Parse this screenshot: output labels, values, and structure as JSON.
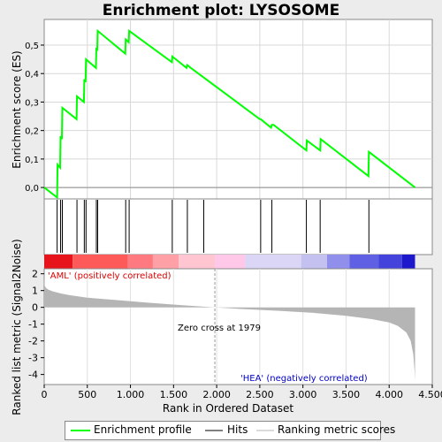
{
  "title": "Enrichment plot: LYSOSOME",
  "chart_data": {
    "type": "line",
    "top_panel": {
      "ylabel": "Enrichment score (ES)",
      "ylim": [
        -0.04,
        0.59
      ],
      "yticks": [
        0.0,
        0.1,
        0.2,
        0.3,
        0.4,
        0.5
      ],
      "ytick_labels": [
        "0,0",
        "0,1",
        "0,2",
        "0,3",
        "0,4",
        "0,5"
      ],
      "series": [
        {
          "name": "Enrichment profile",
          "color": "#00ff00",
          "x": [
            0,
            150,
            155,
            185,
            190,
            205,
            210,
            375,
            380,
            460,
            465,
            480,
            485,
            600,
            605,
            615,
            620,
            940,
            945,
            980,
            985,
            1480,
            1485,
            1650,
            1660,
            1700,
            2500,
            2510,
            2630,
            2640,
            2660,
            3040,
            3045,
            3200,
            3205,
            3760,
            3765,
            4300
          ],
          "y": [
            0.0,
            -0.035,
            0.08,
            0.07,
            0.18,
            0.17,
            0.28,
            0.24,
            0.32,
            0.3,
            0.38,
            0.37,
            0.45,
            0.42,
            0.49,
            0.48,
            0.55,
            0.47,
            0.52,
            0.51,
            0.55,
            0.44,
            0.46,
            0.42,
            0.43,
            0.42,
            0.24,
            0.24,
            0.21,
            0.22,
            0.22,
            0.13,
            0.165,
            0.13,
            0.17,
            0.04,
            0.125,
            0.0
          ]
        }
      ]
    },
    "hits": [
      150,
      190,
      210,
      380,
      465,
      485,
      605,
      620,
      945,
      985,
      1485,
      1660,
      1850,
      2510,
      2640,
      3040,
      3200,
      3765
    ],
    "bottom_panel": {
      "ylabel": "Ranked list metric (Signal2Noise)",
      "ylim": [
        -4.6,
        2.3
      ],
      "yticks": [
        -4,
        -3,
        -2,
        -1,
        0,
        1,
        2
      ],
      "ytick_labels": [
        "-4",
        "-3",
        "-2",
        "-1",
        "0",
        "1",
        "2"
      ],
      "metric_x": [
        0,
        5,
        20,
        50,
        100,
        200,
        300,
        500,
        800,
        1200,
        1600,
        1979,
        2300,
        2700,
        3100,
        3500,
        3800,
        4000,
        4100,
        4200,
        4250,
        4280,
        4295,
        4300
      ],
      "metric_y": [
        2.05,
        1.3,
        1.15,
        1.05,
        0.95,
        0.82,
        0.72,
        0.58,
        0.45,
        0.28,
        0.13,
        0.0,
        -0.1,
        -0.2,
        -0.32,
        -0.5,
        -0.7,
        -0.9,
        -1.1,
        -1.5,
        -2.0,
        -2.8,
        -3.8,
        -4.35
      ],
      "fill_color": "#b5b5b5"
    },
    "x_axis": {
      "label": "Rank in Ordered Dataset",
      "xlim": [
        0,
        4500
      ],
      "ticks": [
        0,
        500,
        1000,
        1500,
        2000,
        2500,
        3000,
        3500,
        4000,
        4500
      ],
      "tick_labels": [
        "0",
        "500",
        "1.000",
        "1.500",
        "2.000",
        "2.500",
        "3.000",
        "3.500",
        "4.000",
        "4.500"
      ]
    },
    "total_rank": 4300,
    "zero_cross": 1979,
    "color_bar_segments": [
      {
        "x0": 0,
        "x1": 330,
        "color": "#e8141c"
      },
      {
        "x0": 330,
        "x1": 970,
        "color": "#ff5a5a"
      },
      {
        "x0": 970,
        "x1": 1260,
        "color": "#ff7a80"
      },
      {
        "x0": 1260,
        "x1": 1560,
        "color": "#ffa0a6"
      },
      {
        "x0": 1560,
        "x1": 1979,
        "color": "#ffc6d2"
      },
      {
        "x0": 1979,
        "x1": 2330,
        "color": "#ffc8e8"
      },
      {
        "x0": 2330,
        "x1": 2980,
        "color": "#dcd6f6"
      },
      {
        "x0": 2980,
        "x1": 3280,
        "color": "#c4c0f0"
      },
      {
        "x0": 3280,
        "x1": 3540,
        "color": "#9090ec"
      },
      {
        "x0": 3540,
        "x1": 3880,
        "color": "#6060e4"
      },
      {
        "x0": 3880,
        "x1": 4150,
        "color": "#4444dd"
      },
      {
        "x0": 4150,
        "x1": 4300,
        "color": "#1e18cc"
      }
    ],
    "annotations": {
      "positive": "'AML' (positively correlated)",
      "negative": "'HEA' (negatively correlated)",
      "zero_cross": "Zero cross at 1979"
    },
    "colors": {
      "positive": "#dd0000",
      "negative": "#0000cc"
    }
  },
  "legend": {
    "items": [
      {
        "label": "Enrichment profile",
        "color": "#00ff00"
      },
      {
        "label": "Hits",
        "color": "#000000"
      },
      {
        "label": "Ranking metric scores",
        "color": "#b5b5b5"
      }
    ]
  }
}
